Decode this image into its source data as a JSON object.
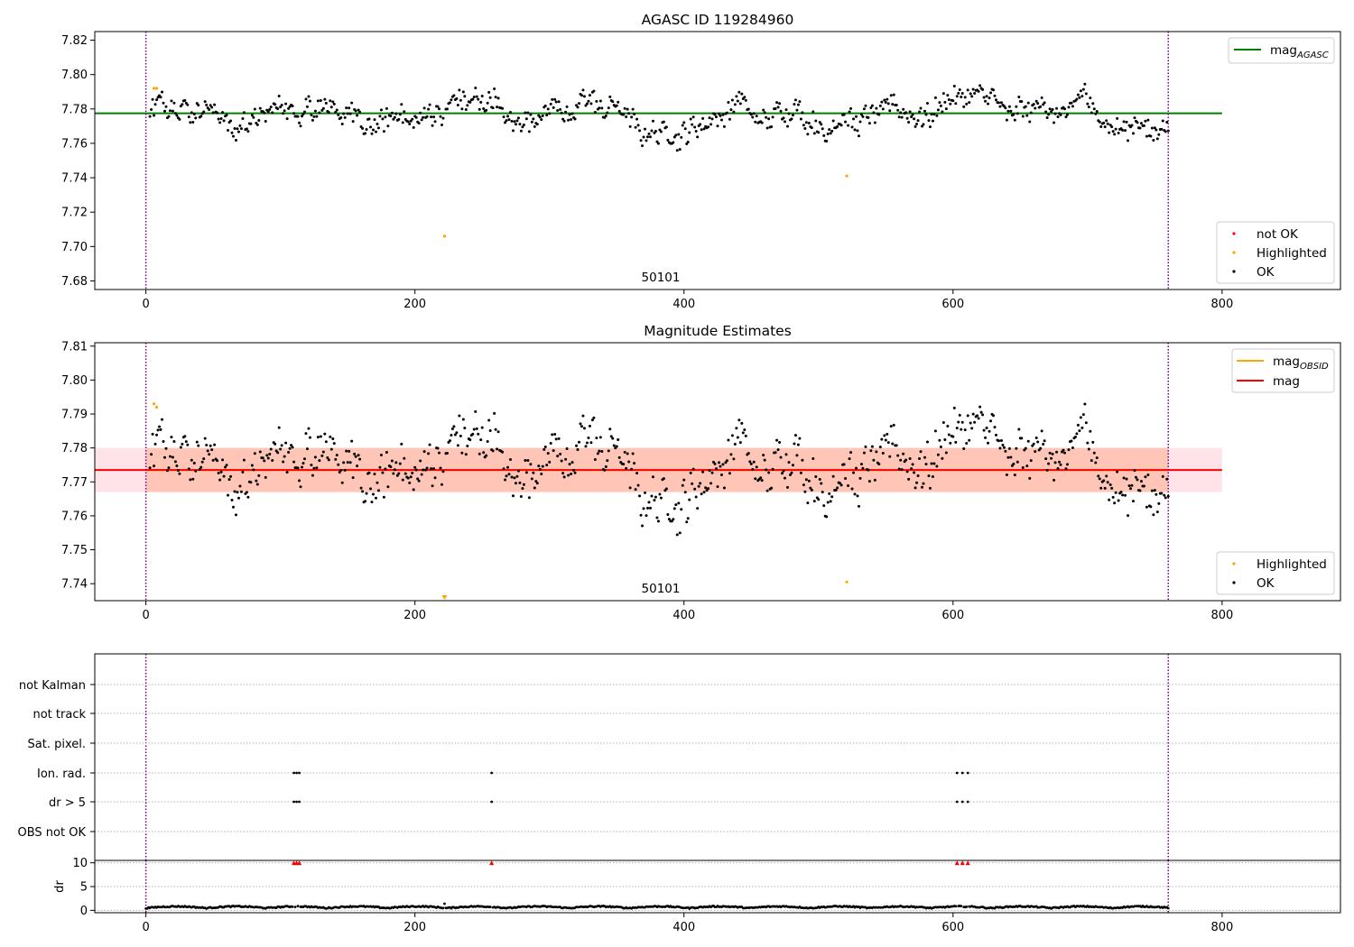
{
  "chart_data": [
    {
      "type": "scatter",
      "title": "AGASC ID 119284960",
      "xlabel": "",
      "ylabel": "",
      "xlim": [
        -38,
        888
      ],
      "ylim": [
        7.675,
        7.825
      ],
      "x_ticks": [
        "0",
        "200",
        "400",
        "600",
        "800"
      ],
      "y_ticks": [
        "7.68",
        "7.70",
        "7.72",
        "7.74",
        "7.76",
        "7.78",
        "7.80",
        "7.82"
      ],
      "obsid_label": "50101",
      "lines": [
        {
          "name": "mag_AGASC",
          "value": 7.7775,
          "x_range": [
            -38,
            800
          ],
          "color": "#008000"
        }
      ],
      "vlines": [
        0,
        760
      ],
      "vline_color": "#800080",
      "legends": {
        "top_right": [
          {
            "label": "mag",
            "sub": "AGASC"
          }
        ],
        "bottom_right": [
          {
            "label": "not OK",
            "color": "#ff0000"
          },
          {
            "label": "Highlighted",
            "color": "#ffa500"
          },
          {
            "label": "OK",
            "color": "#000000"
          }
        ]
      },
      "series_ok": {
        "color": "#000000",
        "description": "~760 points, roughly 7.758-7.790, clustered around 7.775"
      },
      "highlighted": [
        {
          "x": 6,
          "y": 7.792
        },
        {
          "x": 8,
          "y": 7.792
        },
        {
          "x": 222,
          "y": 7.706
        },
        {
          "x": 521,
          "y": 7.741
        }
      ]
    },
    {
      "type": "scatter",
      "title": "Magnitude Estimates",
      "xlabel": "",
      "ylabel": "",
      "xlim": [
        -38,
        888
      ],
      "ylim": [
        7.735,
        7.811
      ],
      "x_ticks": [
        "0",
        "200",
        "400",
        "600",
        "800"
      ],
      "y_ticks": [
        "7.74",
        "7.75",
        "7.76",
        "7.77",
        "7.78",
        "7.79",
        "7.80",
        "7.81"
      ],
      "obsid_label": "50101",
      "lines": [
        {
          "name": "mag_OBSID",
          "value": 7.7735,
          "x_range": [
            0,
            760
          ],
          "color": "#ffa500"
        },
        {
          "name": "mag",
          "value": 7.7735,
          "x_range": [
            -38,
            800
          ],
          "color": "#ff0000"
        }
      ],
      "bands": [
        {
          "low": 7.767,
          "high": 7.78,
          "x_range": [
            -38,
            800
          ],
          "color": "#ffc0cb"
        },
        {
          "low": 7.767,
          "high": 7.78,
          "x_range": [
            0,
            760
          ],
          "color": "#ffa07a"
        }
      ],
      "vlines": [
        0,
        760
      ],
      "legends": {
        "top_right": [
          {
            "label": "mag",
            "sub": "OBSID",
            "color": "#ffa500"
          },
          {
            "label": "mag",
            "sub": "",
            "color": "#ff0000"
          }
        ],
        "bottom_right": [
          {
            "label": "Highlighted",
            "color": "#ffa500"
          },
          {
            "label": "OK",
            "color": "#000000"
          }
        ]
      },
      "highlighted": [
        {
          "x": 6,
          "y": 7.793
        },
        {
          "x": 8,
          "y": 7.792
        },
        {
          "x": 521,
          "y": 7.7405
        }
      ],
      "off_axis_markers": [
        {
          "x": 222,
          "marker": "triangle-down"
        }
      ]
    },
    {
      "type": "scatter",
      "title": "",
      "xlim": [
        -38,
        888
      ],
      "categories": [
        "not Kalman",
        "not track",
        "Sat. pixel.",
        "Ion. rad.",
        "dr > 5",
        "OBS not OK"
      ],
      "flag_points": {
        "Ion. rad.": [
          110,
          112,
          114,
          257,
          603,
          607,
          611
        ],
        "dr > 5": [
          110,
          112,
          114,
          257,
          603,
          607,
          611
        ]
      },
      "vlines": [
        0,
        760
      ]
    },
    {
      "type": "scatter",
      "title": "",
      "xlabel": "",
      "ylabel": "dr",
      "xlim": [
        -38,
        888
      ],
      "ylim": [
        -0.5,
        10.5
      ],
      "x_ticks": [
        "0",
        "200",
        "400",
        "600",
        "800"
      ],
      "y_ticks": [
        "0",
        "5",
        "10"
      ],
      "description": "dr values near 0.3-1.0 for all 760 points; clipped outliers shown as red up-triangles at dr = 10",
      "clipped": [
        110,
        112,
        114,
        257,
        603,
        607,
        611
      ],
      "vlines": [
        0,
        760
      ]
    }
  ]
}
